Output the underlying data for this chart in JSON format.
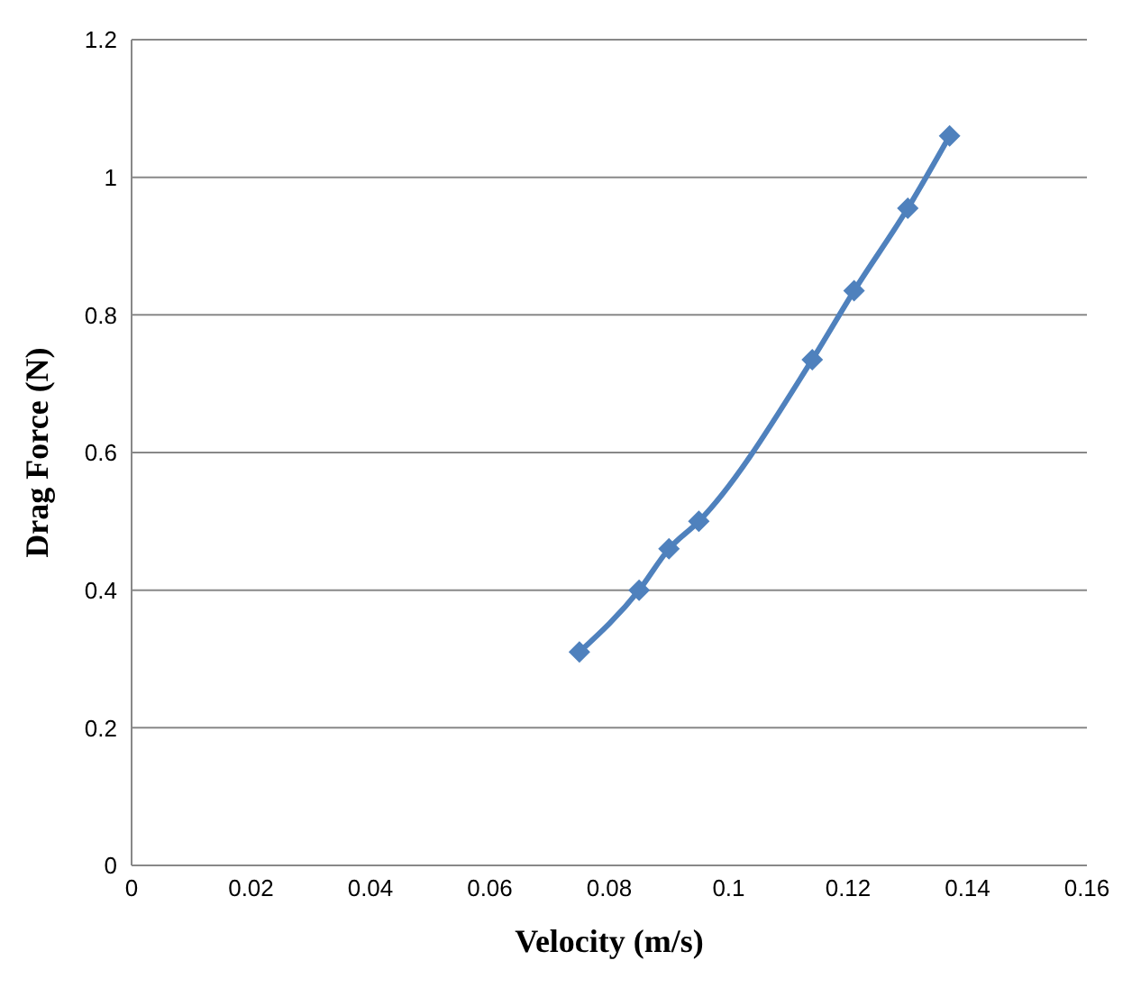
{
  "chart_data": {
    "type": "line",
    "xlabel": "Velocity (m/s)",
    "ylabel": "Drag Force (N)",
    "x": [
      0.075,
      0.085,
      0.09,
      0.095,
      0.114,
      0.121,
      0.13,
      0.137
    ],
    "series": [
      {
        "color": "#4f81bd",
        "values": [
          0.31,
          0.4,
          0.46,
          0.5,
          0.735,
          0.835,
          0.955,
          1.06
        ]
      }
    ],
    "xlim": [
      0,
      0.16
    ],
    "xticks": [
      0,
      0.02,
      0.04,
      0.06,
      0.08,
      0.1,
      0.12,
      0.14,
      0.16
    ],
    "ylim": [
      0,
      1.2
    ],
    "yticks": [
      0,
      0.2,
      0.4,
      0.6,
      0.8,
      1,
      1.2
    ],
    "grid": "y",
    "legend": false,
    "marker": "diamond",
    "line_style": "solid"
  }
}
